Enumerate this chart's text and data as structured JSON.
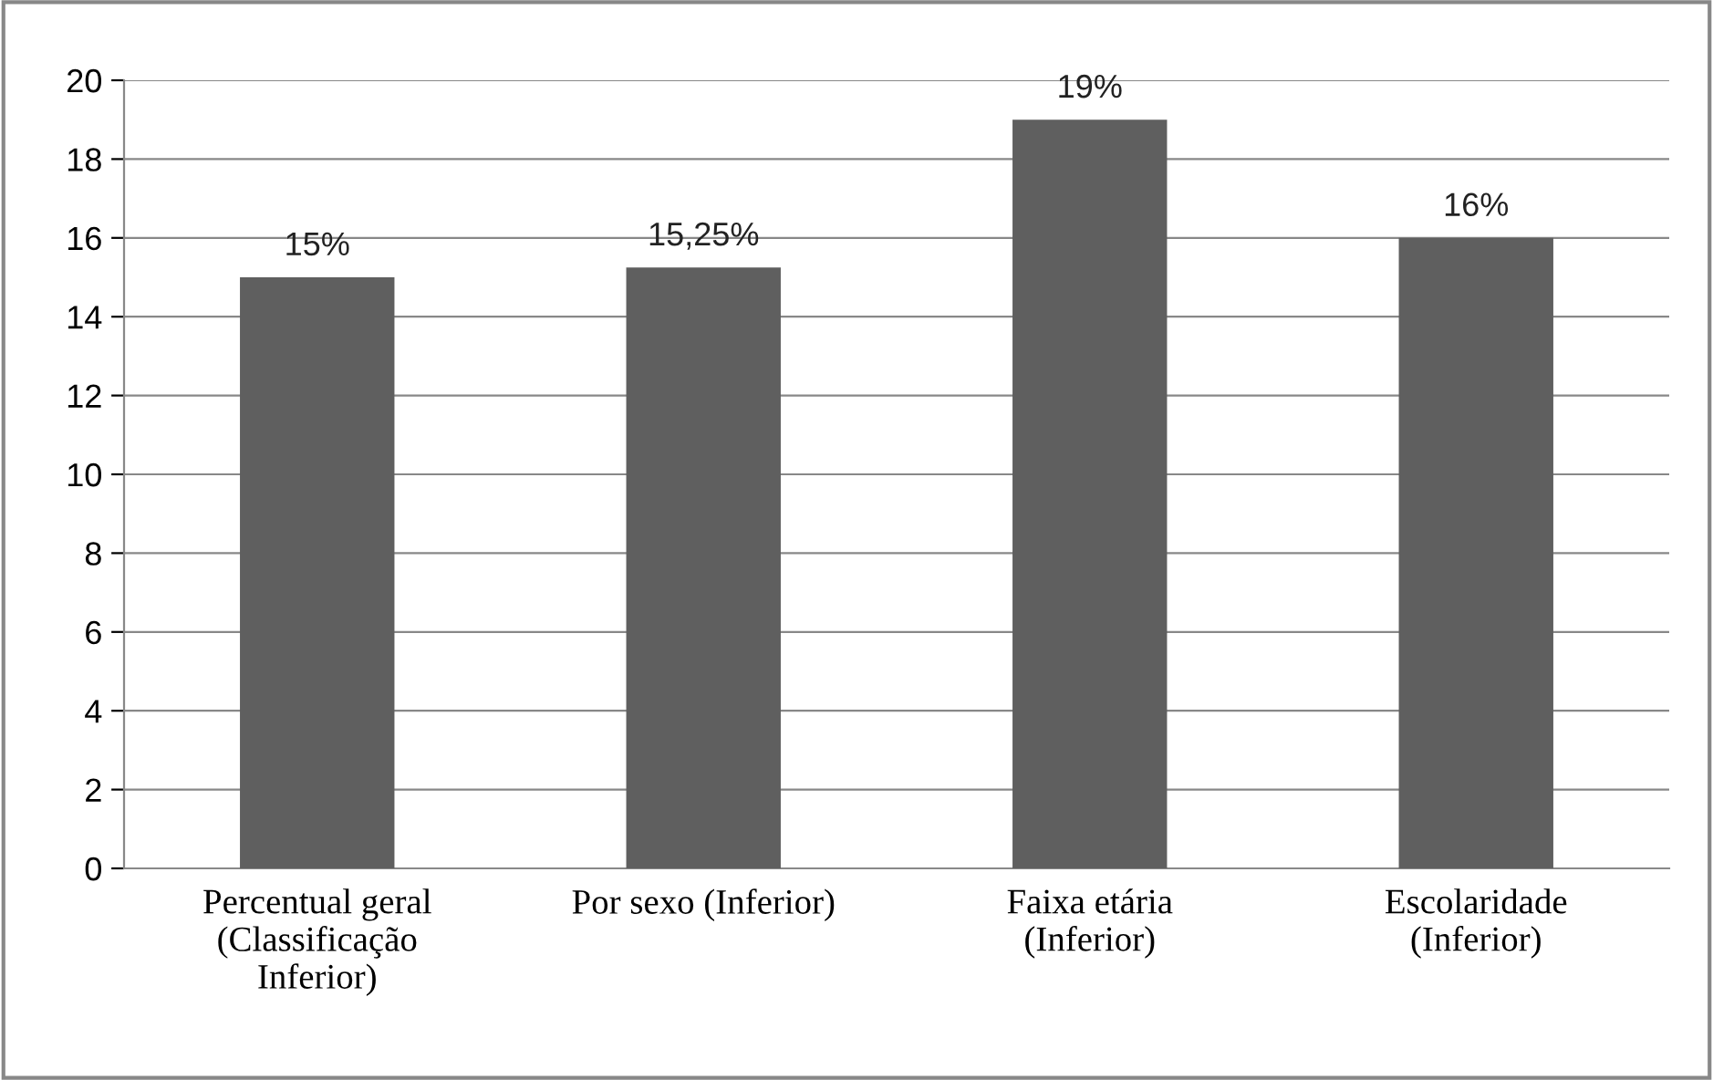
{
  "chart_data": {
    "type": "bar",
    "categories": [
      "Percentual geral\n(Classificação\nInferior)",
      "Por sexo (Inferior)",
      "Faixa etária\n(Inferior)",
      "Escolaridade\n(Inferior)"
    ],
    "values": [
      15,
      15.25,
      19,
      16
    ],
    "value_labels": [
      "15%",
      "15,25%",
      "19%",
      "16%"
    ],
    "color": "#5f5f5f",
    "ylim": [
      0,
      20
    ],
    "yticks": [
      0,
      2,
      4,
      6,
      8,
      10,
      12,
      14,
      16,
      18,
      20
    ],
    "grid": "y",
    "legend": false
  }
}
